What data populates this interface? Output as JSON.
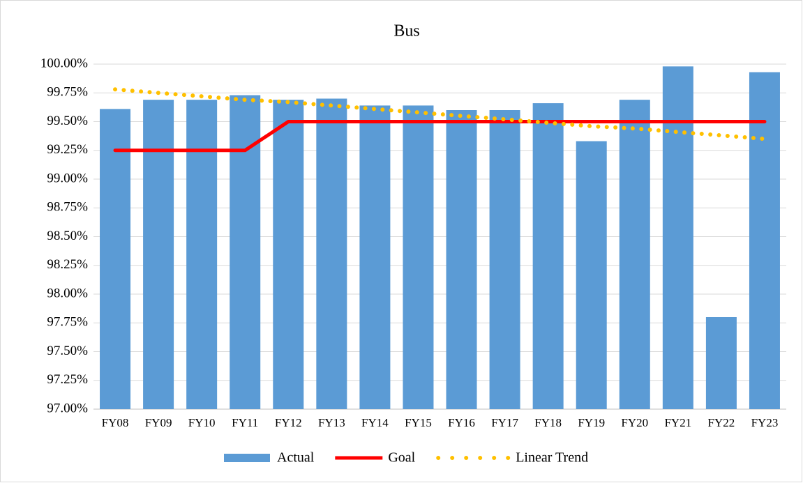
{
  "chart_data": {
    "type": "bar",
    "title": "Bus",
    "categories": [
      "FY08",
      "FY09",
      "FY10",
      "FY11",
      "FY12",
      "FY13",
      "FY14",
      "FY15",
      "FY16",
      "FY17",
      "FY18",
      "FY19",
      "FY20",
      "FY21",
      "FY22",
      "FY23"
    ],
    "series": [
      {
        "name": "Actual",
        "type": "bar",
        "color": "#5b9bd5",
        "values": [
          99.61,
          99.69,
          99.69,
          99.73,
          99.69,
          99.7,
          99.64,
          99.64,
          99.6,
          99.6,
          99.66,
          99.33,
          99.69,
          99.98,
          97.8,
          99.93
        ]
      },
      {
        "name": "Goal",
        "type": "line",
        "color": "#ff0000",
        "values": [
          99.25,
          99.25,
          99.25,
          99.25,
          99.5,
          99.5,
          99.5,
          99.5,
          99.5,
          99.5,
          99.5,
          99.5,
          99.5,
          99.5,
          99.5,
          99.5
        ]
      },
      {
        "name": "Linear Trend",
        "type": "dotted-line",
        "color": "#ffc000",
        "values": [
          99.78,
          99.75,
          99.72,
          99.69,
          99.67,
          99.64,
          99.61,
          99.58,
          99.55,
          99.52,
          99.49,
          99.46,
          99.44,
          99.41,
          99.38,
          99.35
        ]
      }
    ],
    "ylim": [
      97,
      100
    ],
    "yticks": [
      {
        "value": 97,
        "label": "97.00%"
      },
      {
        "value": 97.25,
        "label": "97.25%"
      },
      {
        "value": 97.5,
        "label": "97.50%"
      },
      {
        "value": 97.75,
        "label": "97.75%"
      },
      {
        "value": 98,
        "label": "98.00%"
      },
      {
        "value": 98.25,
        "label": "98.25%"
      },
      {
        "value": 98.5,
        "label": "98.50%"
      },
      {
        "value": 98.75,
        "label": "98.75%"
      },
      {
        "value": 99,
        "label": "99.00%"
      },
      {
        "value": 99.25,
        "label": "99.25%"
      },
      {
        "value": 99.5,
        "label": "99.50%"
      },
      {
        "value": 99.75,
        "label": "99.75%"
      },
      {
        "value": 100,
        "label": "100.00%"
      }
    ],
    "grid": true,
    "legend": "bottom"
  }
}
